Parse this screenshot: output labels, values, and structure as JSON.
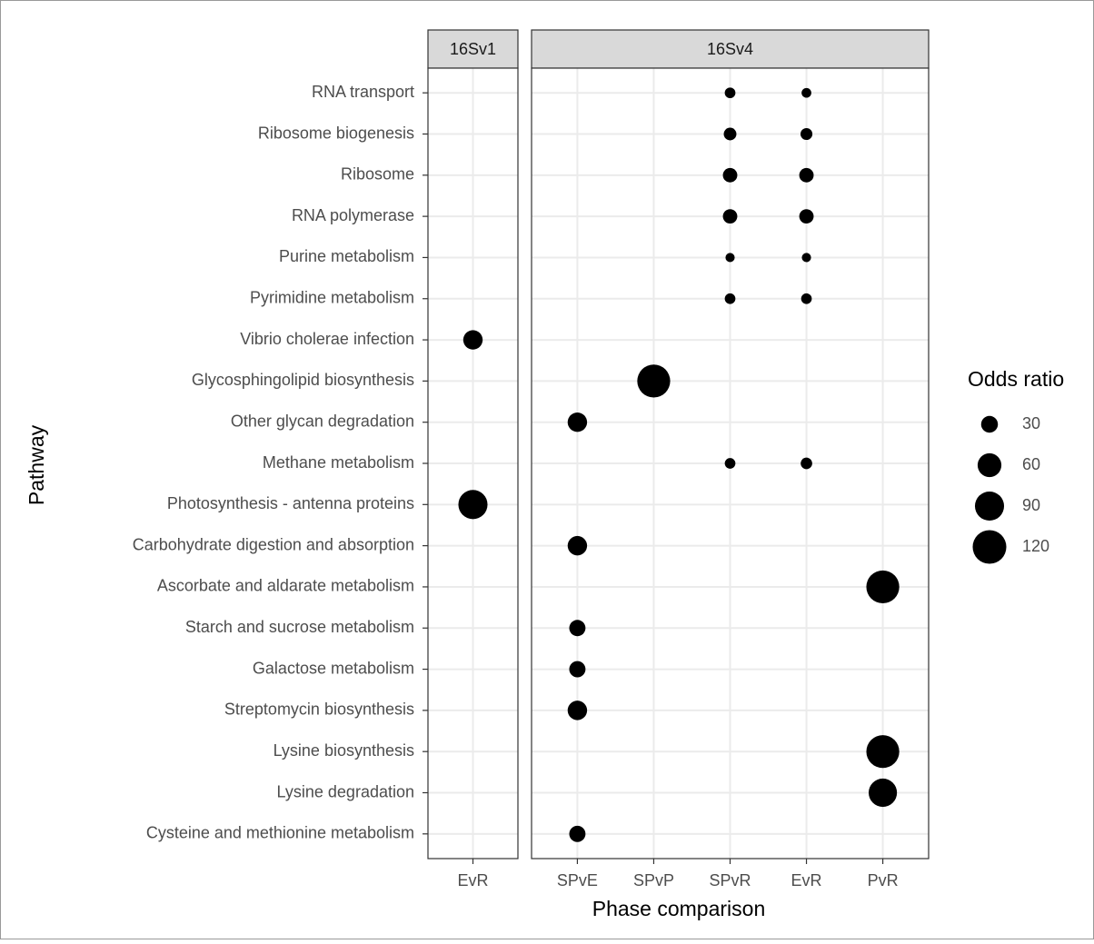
{
  "chart_data": {
    "type": "dot",
    "x_label": "Phase comparison",
    "y_label": "Pathway",
    "categories": [
      "RNA transport",
      "Ribosome biogenesis",
      "Ribosome",
      "RNA polymerase",
      "Purine metabolism",
      "Pyrimidine metabolism",
      "Vibrio cholerae infection",
      "Glycosphingolipid biosynthesis",
      "Other glycan degradation",
      "Methane metabolism",
      "Photosynthesis - antenna proteins",
      "Carbohydrate digestion and absorption",
      "Ascorbate and aldarate metabolism",
      "Starch and sucrose metabolism",
      "Galactose metabolism",
      "Streptomycin biosynthesis",
      "Lysine biosynthesis",
      "Lysine degradation",
      "Cysteine and methionine metabolism"
    ],
    "color": "#000000",
    "grid": true,
    "panels": [
      {
        "title": "16Sv1",
        "series": [
          {
            "name": "EvR",
            "values": [
              null,
              null,
              null,
              null,
              null,
              null,
              40,
              null,
              null,
              null,
              90,
              null,
              null,
              null,
              null,
              null,
              null,
              null,
              null
            ]
          }
        ]
      },
      {
        "title": "16Sv4",
        "series": [
          {
            "name": "SPvE",
            "values": [
              null,
              null,
              null,
              null,
              null,
              null,
              null,
              null,
              40,
              null,
              null,
              40,
              null,
              28,
              28,
              40,
              null,
              null,
              28
            ]
          },
          {
            "name": "SPvP",
            "values": [
              null,
              null,
              null,
              null,
              null,
              null,
              null,
              115,
              null,
              null,
              null,
              null,
              null,
              null,
              null,
              null,
              null,
              null,
              null
            ]
          },
          {
            "name": "SPvR",
            "values": [
              12,
              17,
              22,
              22,
              9,
              12,
              null,
              null,
              null,
              12,
              null,
              null,
              null,
              null,
              null,
              null,
              null,
              null,
              null
            ]
          },
          {
            "name": "EvR",
            "values": [
              10,
              15,
              22,
              22,
              9,
              12,
              null,
              null,
              null,
              14,
              null,
              null,
              null,
              null,
              null,
              null,
              null,
              null,
              null
            ]
          },
          {
            "name": "PvR",
            "values": [
              null,
              null,
              null,
              null,
              null,
              null,
              null,
              null,
              null,
              null,
              null,
              null,
              115,
              null,
              null,
              null,
              115,
              85,
              null
            ]
          }
        ]
      }
    ],
    "legend": {
      "title": "Odds ratio",
      "sizes": [
        30,
        60,
        90,
        120
      ]
    }
  }
}
